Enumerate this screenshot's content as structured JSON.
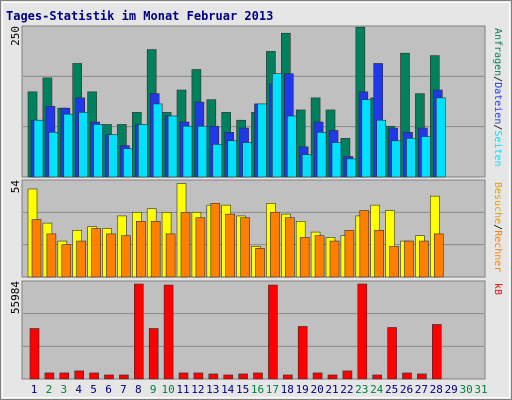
{
  "chart_data": [
    {
      "type": "bar",
      "title": "Tages-Statistik im Monat Februar 2013",
      "ylim": [
        0,
        250
      ],
      "yticks": [
        250
      ],
      "grid": true,
      "separator": "/",
      "series": [
        {
          "name": "Anfragen",
          "color": "#00805c",
          "values": [
            141,
            164,
            114,
            188,
            141,
            87,
            87,
            107,
            211,
            107,
            144,
            178,
            128,
            107,
            94,
            107,
            208,
            238,
            111,
            131,
            111,
            64,
            248,
            131,
            84,
            205,
            138,
            201,
            null,
            null,
            null
          ]
        },
        {
          "name": "Dateien",
          "color": "#2038e8",
          "values": [
            94,
            117,
            114,
            131,
            91,
            70,
            52,
            87,
            138,
            101,
            91,
            124,
            84,
            74,
            81,
            121,
            154,
            171,
            50,
            91,
            77,
            34,
            141,
            188,
            81,
            74,
            81,
            144,
            null,
            null,
            null
          ]
        },
        {
          "name": "Seiten",
          "color": "#00e0ff",
          "values": [
            94,
            74,
            104,
            107,
            87,
            70,
            47,
            87,
            121,
            101,
            84,
            84,
            54,
            60,
            57,
            121,
            171,
            101,
            37,
            74,
            57,
            30,
            128,
            94,
            60,
            64,
            67,
            131,
            null,
            null,
            null
          ]
        }
      ]
    },
    {
      "type": "bar",
      "ylim": [
        0,
        54
      ],
      "yticks": [
        54
      ],
      "grid": true,
      "separator": "/",
      "series": [
        {
          "name": "Besuche",
          "color": "#ffff00",
          "values": [
            49,
            30,
            20,
            26,
            28,
            27,
            34,
            36,
            38,
            36,
            52,
            36,
            40,
            40,
            34,
            17,
            41,
            35,
            31,
            25,
            22,
            23,
            34,
            40,
            37,
            20,
            23,
            45,
            null,
            null,
            null
          ]
        },
        {
          "name": "Rechner",
          "color": "#ff8000",
          "values": [
            32,
            24,
            18,
            20,
            27,
            24,
            23,
            31,
            31,
            24,
            36,
            33,
            41,
            35,
            33,
            16,
            36,
            33,
            22,
            23,
            20,
            26,
            37,
            26,
            17,
            20,
            20,
            24,
            null,
            null,
            null
          ]
        }
      ]
    },
    {
      "type": "bar",
      "ylim": [
        0,
        55984
      ],
      "yticks": [
        55984
      ],
      "grid": true,
      "categories": [
        "1",
        "2",
        "3",
        "4",
        "5",
        "6",
        "7",
        "8",
        "9",
        "10",
        "11",
        "12",
        "13",
        "14",
        "15",
        "16",
        "17",
        "18",
        "19",
        "20",
        "21",
        "22",
        "23",
        "24",
        "25",
        "26",
        "27",
        "28",
        "29",
        "30",
        "31"
      ],
      "category_colors": [
        "#000080",
        "#008040",
        "#008040",
        "#000080",
        "#000080",
        "#000080",
        "#000080",
        "#000080",
        "#008040",
        "#008040",
        "#000080",
        "#000080",
        "#000080",
        "#000080",
        "#000080",
        "#008040",
        "#008040",
        "#000080",
        "#000080",
        "#000080",
        "#000080",
        "#000080",
        "#008040",
        "#008040",
        "#000080",
        "#000080",
        "#000080",
        "#000080",
        "#000080",
        "#008040",
        "#008040"
      ],
      "series": [
        {
          "name": "kB",
          "color": "#ff0000",
          "values": [
            28858,
            3463,
            3463,
            4617,
            3463,
            2309,
            2309,
            54253,
            28858,
            53676,
            3463,
            3463,
            2886,
            2309,
            2886,
            3463,
            53676,
            2309,
            30012,
            3463,
            2309,
            4617,
            54253,
            2309,
            29435,
            3463,
            2886,
            31167,
            null,
            null,
            null
          ]
        }
      ]
    }
  ]
}
